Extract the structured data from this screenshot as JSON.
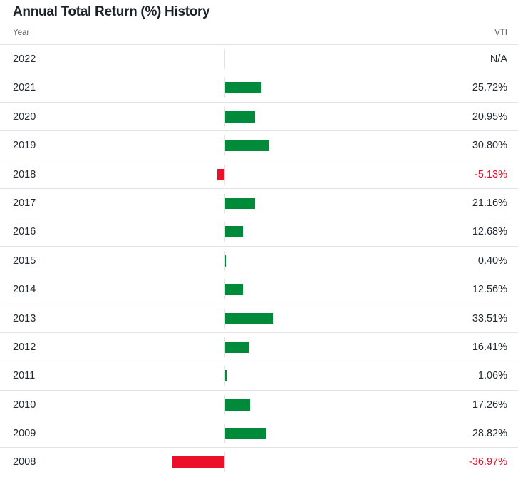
{
  "title": "Annual Total Return (%) History",
  "header": {
    "year_label": "Year",
    "ticker_label": "VTI"
  },
  "colors": {
    "positive": "#008a3a",
    "negative": "#eb0f29"
  },
  "chart_data": {
    "type": "bar",
    "title": "Annual Total Return (%) History",
    "categories": [
      "2022",
      "2021",
      "2020",
      "2019",
      "2018",
      "2017",
      "2016",
      "2015",
      "2014",
      "2013",
      "2012",
      "2011",
      "2010",
      "2009",
      "2008"
    ],
    "series": [
      {
        "name": "VTI",
        "values": [
          null,
          25.72,
          20.95,
          30.8,
          -5.13,
          21.16,
          12.68,
          0.4,
          12.56,
          33.51,
          16.41,
          1.06,
          17.26,
          28.82,
          -36.97
        ],
        "labels": [
          "N/A",
          "25.72%",
          "20.95%",
          "30.80%",
          "-5.13%",
          "21.16%",
          "12.68%",
          "0.40%",
          "12.56%",
          "33.51%",
          "16.41%",
          "1.06%",
          "17.26%",
          "28.82%",
          "-36.97%"
        ]
      }
    ],
    "orientation": "horizontal"
  }
}
